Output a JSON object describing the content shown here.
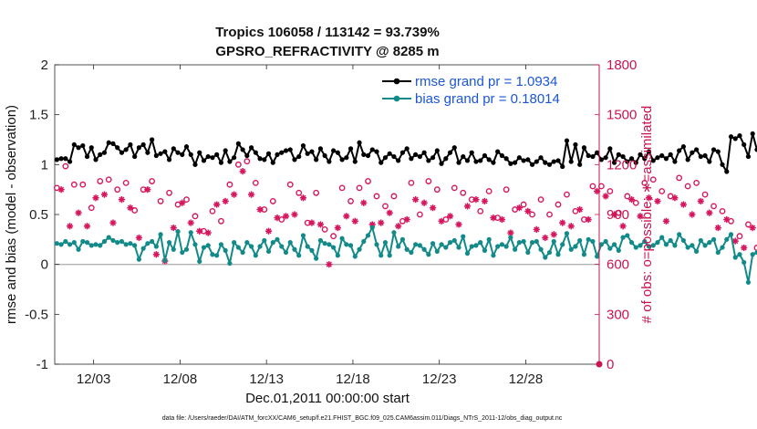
{
  "chart_data": {
    "type": "line",
    "title": "Tropics 106058 / 113142 = 93.739%",
    "subtitle": "GPSRO_REFRACTIVITY @ 8285 m",
    "xlabel": "Dec.01,2011 00:00:00 start",
    "ylabel": "rmse and bias (model - observation)",
    "y2label": "# of obs: o=possible; ∗=assimilated",
    "footer": "data file: /Users/raeder/DAI/ATM_forcXX/CAM6_setup/f.e21.FHIST_BGC.f09_025.CAM6assim.011/Diags_NTrS_2011-12/obs_diag_output.nc",
    "xlim": [
      0.25,
      31.75
    ],
    "ylim": [
      -1,
      2
    ],
    "y2lim": [
      0,
      1800
    ],
    "x_ticks": [
      2.5,
      7.5,
      12.5,
      17.5,
      22.5,
      27.5
    ],
    "x_tick_labels": [
      "12/03",
      "12/08",
      "12/13",
      "12/18",
      "12/23",
      "12/28"
    ],
    "y_ticks": [
      -1,
      -0.5,
      0,
      0.5,
      1,
      1.5,
      2
    ],
    "y_tick_labels": [
      "-1",
      "-0.5",
      "0",
      "0.5",
      "1",
      "1.5",
      "2"
    ],
    "y2_ticks": [
      0,
      300,
      600,
      900,
      1200,
      1500,
      1800
    ],
    "y2_tick_labels": [
      "0",
      "300",
      "600",
      "900",
      "1200",
      "1500",
      "1800"
    ],
    "zero_line_y": 0,
    "start_day": 0.375,
    "step_days": 0.25,
    "series": [
      {
        "name": "rmse grand pr = 1.0934",
        "color": "#000000",
        "axis": "left",
        "values": [
          1.05,
          1.06,
          1.06,
          1.03,
          1.2,
          1.17,
          1.19,
          1.08,
          1.17,
          1.05,
          1.1,
          1.12,
          1.22,
          1.21,
          1.17,
          1.12,
          1.15,
          1.2,
          1.08,
          1.17,
          1.2,
          1.12,
          1.25,
          1.09,
          1.11,
          1.13,
          1.05,
          1.16,
          1.12,
          1.1,
          1.18,
          1.1,
          1.0,
          1.12,
          1.04,
          1.08,
          1.07,
          1.1,
          1.02,
          1.14,
          1.03,
          1.07,
          1.21,
          1.15,
          1.09,
          1.17,
          1.12,
          1.06,
          1.05,
          1.11,
          1.02,
          1.1,
          1.12,
          1.14,
          1.15,
          1.05,
          1.08,
          1.19,
          1.11,
          1.13,
          1.05,
          1.16,
          1.09,
          1.03,
          1.14,
          1.12,
          1.05,
          1.07,
          1.16,
          1.03,
          1.22,
          1.1,
          1.09,
          1.15,
          1.13,
          1.02,
          1.07,
          1.11,
          1.08,
          1.04,
          1.12,
          1.16,
          1.06,
          1.1,
          1.08,
          1.12,
          1.04,
          1.07,
          1.14,
          1.01,
          1.06,
          1.12,
          1.17,
          1.02,
          1.08,
          1.04,
          1.12,
          1.03,
          1.04,
          1.09,
          1.05,
          1.02,
          1.13,
          1.09,
          1.06,
          1.01,
          1.02,
          1.07,
          1.04,
          1.05,
          1.0,
          1.03,
          1.07,
          1.02,
          1.0,
          1.03,
          1.04,
          0.98,
          1.24,
          1.03,
          1.2,
          1.0,
          1.17,
          1.09,
          1.08,
          1.12,
          1.05,
          1.07,
          1.16,
          1.02,
          1.1,
          1.08,
          1.03,
          1.06,
          1.02,
          1.1,
          1.06,
          1.13,
          1.04,
          1.07,
          1.09,
          1.06,
          1.1,
          1.03,
          1.14,
          1.18,
          1.05,
          1.12,
          1.15,
          1.08,
          1.09,
          1.03,
          1.15,
          1.13,
          1.0,
          0.93,
          1.28,
          1.26,
          1.29,
          1.2,
          1.08,
          1.31,
          1.15,
          1.1,
          1.13,
          1.2,
          1.22,
          1.26,
          1.35,
          1.29,
          1.22,
          1.3,
          1.21,
          1.19
        ]
      },
      {
        "name": "bias grand pr = 0.18014",
        "color": "#138a8a",
        "axis": "left",
        "values": [
          0.21,
          0.2,
          0.23,
          0.2,
          0.22,
          0.15,
          0.23,
          0.22,
          0.19,
          0.2,
          0.19,
          0.23,
          0.27,
          0.24,
          0.22,
          0.23,
          0.2,
          0.21,
          0.19,
          0.05,
          0.16,
          0.21,
          0.23,
          0.18,
          0.3,
          0.04,
          0.22,
          0.15,
          0.33,
          0.12,
          0.15,
          0.32,
          0.2,
          0.03,
          0.17,
          0.19,
          0.1,
          0.09,
          0.2,
          0.14,
          0.01,
          0.22,
          0.17,
          0.12,
          0.22,
          0.18,
          0.09,
          0.18,
          0.24,
          0.13,
          0.22,
          0.25,
          0.18,
          0.12,
          0.22,
          0.15,
          0.09,
          0.29,
          0.18,
          0.14,
          0.06,
          0.24,
          0.21,
          0.2,
          0.17,
          0.09,
          0.26,
          0.2,
          0.19,
          0.08,
          0.15,
          0.23,
          0.29,
          0.37,
          0.2,
          0.09,
          0.22,
          0.09,
          0.32,
          0.18,
          0.25,
          0.15,
          0.12,
          0.2,
          0.19,
          0.15,
          0.1,
          0.21,
          0.13,
          0.2,
          0.17,
          0.22,
          0.24,
          0.17,
          0.28,
          0.11,
          0.18,
          0.19,
          0.22,
          0.14,
          0.25,
          0.09,
          0.18,
          0.2,
          0.18,
          0.27,
          0.15,
          0.22,
          0.23,
          0.12,
          0.22,
          0.23,
          0.15,
          0.07,
          0.12,
          0.23,
          0.1,
          0.2,
          0.31,
          0.15,
          0.18,
          0.24,
          0.1,
          0.25,
          0.23,
          0.08,
          0.2,
          0.23,
          0.16,
          0.2,
          0.14,
          0.27,
          0.29,
          0.22,
          0.17,
          0.19,
          0.23,
          0.18,
          0.19,
          0.22,
          0.27,
          0.2,
          0.24,
          0.19,
          0.3,
          0.24,
          0.17,
          0.19,
          0.13,
          0.24,
          0.19,
          0.22,
          0.25,
          0.12,
          0.17,
          0.25,
          0.3,
          0.07,
          0.1,
          0.02,
          -0.18,
          0.1,
          0.12,
          0.08,
          0.14,
          0.11,
          0.17,
          0.19,
          0.09,
          0.07,
          0.2,
          0.36,
          0.1,
          0.3,
          0.28,
          0.02
        ]
      },
      {
        "name": "possible observations (o)",
        "color": "#d6165e",
        "axis": "right",
        "marker": "circle",
        "values": [
          1060,
          1130,
          1190,
          900,
          1080,
          975,
          1080,
          890,
          940,
          1070,
          1100,
          1100,
          1110,
          920,
          1050,
          1070,
          1090,
          1010,
          925,
          820,
          1050,
          1130,
          1100,
          720,
          980,
          680,
          1030,
          880,
          960,
          1050,
          990,
          920,
          890,
          870,
          800,
          860,
          920,
          1030,
          860,
          1050,
          1080,
          1100,
          1200,
          1250,
          1220,
          1100,
          1090,
          1000,
          930,
          860,
          980,
          940,
          870,
          960,
          1080,
          970,
          1030,
          1080,
          850,
          910,
          1030,
          900,
          810,
          650,
          770,
          880,
          1060,
          960,
          980,
          930,
          1060,
          1040,
          1100,
          900,
          1010,
          910,
          950,
          980,
          1010,
          890,
          860,
          940,
          1090,
          1060,
          900,
          1040,
          1100,
          1010,
          1050,
          930,
          870,
          960,
          1060,
          900,
          1030,
          1020,
          990,
          1070,
          920,
          1050,
          1040,
          950,
          880,
          940,
          1050,
          850,
          930,
          1010,
          960,
          990,
          900,
          870,
          990,
          820,
          900,
          840,
          960,
          910,
          1020,
          890,
          920,
          1000,
          870,
          940,
          1070,
          1120,
          1070,
          1090,
          1040,
          970,
          910,
          890,
          1010,
          1060,
          970,
          960,
          1090,
          1080,
          1110,
          1050,
          1040,
          920,
          1010,
          1080,
          1120,
          1030,
          1070,
          970,
          1090,
          1050,
          1020,
          980,
          950,
          880,
          920,
          940,
          860,
          800,
          770,
          760,
          840,
          880,
          700,
          690,
          670,
          700,
          640,
          620,
          700,
          760,
          810,
          790
        ]
      },
      {
        "name": "assimilated observations (∗)",
        "color": "#d6165e",
        "axis": "right",
        "marker": "asterisk",
        "values": [
          990,
          1050,
          1090,
          830,
          1000,
          910,
          1020,
          830,
          880,
          1000,
          1020,
          1020,
          1030,
          850,
          970,
          990,
          1020,
          940,
          860,
          760,
          970,
          1050,
          1020,
          660,
          910,
          620,
          960,
          820,
          890,
          970,
          920,
          850,
          820,
          800,
          740,
          790,
          850,
          960,
          800,
          980,
          1000,
          1020,
          1120,
          1160,
          1140,
          1020,
          1010,
          930,
          870,
          800,
          910,
          880,
          810,
          890,
          1000,
          900,
          960,
          1000,
          790,
          850,
          960,
          840,
          750,
          600,
          710,
          820,
          990,
          890,
          910,
          860,
          990,
          970,
          1020,
          840,
          940,
          850,
          880,
          910,
          940,
          830,
          800,
          870,
          1010,
          990,
          840,
          970,
          1020,
          940,
          980,
          860,
          810,
          890,
          990,
          840,
          960,
          950,
          920,
          990,
          850,
          980,
          970,
          880,
          820,
          870,
          980,
          790,
          860,
          940,
          890,
          920,
          840,
          810,
          920,
          760,
          840,
          780,
          890,
          850,
          950,
          830,
          860,
          930,
          810,
          870,
          990,
          1040,
          990,
          1010,
          970,
          900,
          850,
          830,
          940,
          990,
          900,
          890,
          1010,
          1000,
          1030,
          980,
          970,
          860,
          940,
          1000,
          1040,
          960,
          990,
          900,
          1010,
          980,
          950,
          910,
          880,
          820,
          860,
          870,
          800,
          740,
          720,
          700,
          780,
          820,
          650,
          640,
          620,
          650,
          590,
          570,
          650,
          710,
          750,
          730
        ]
      }
    ]
  }
}
